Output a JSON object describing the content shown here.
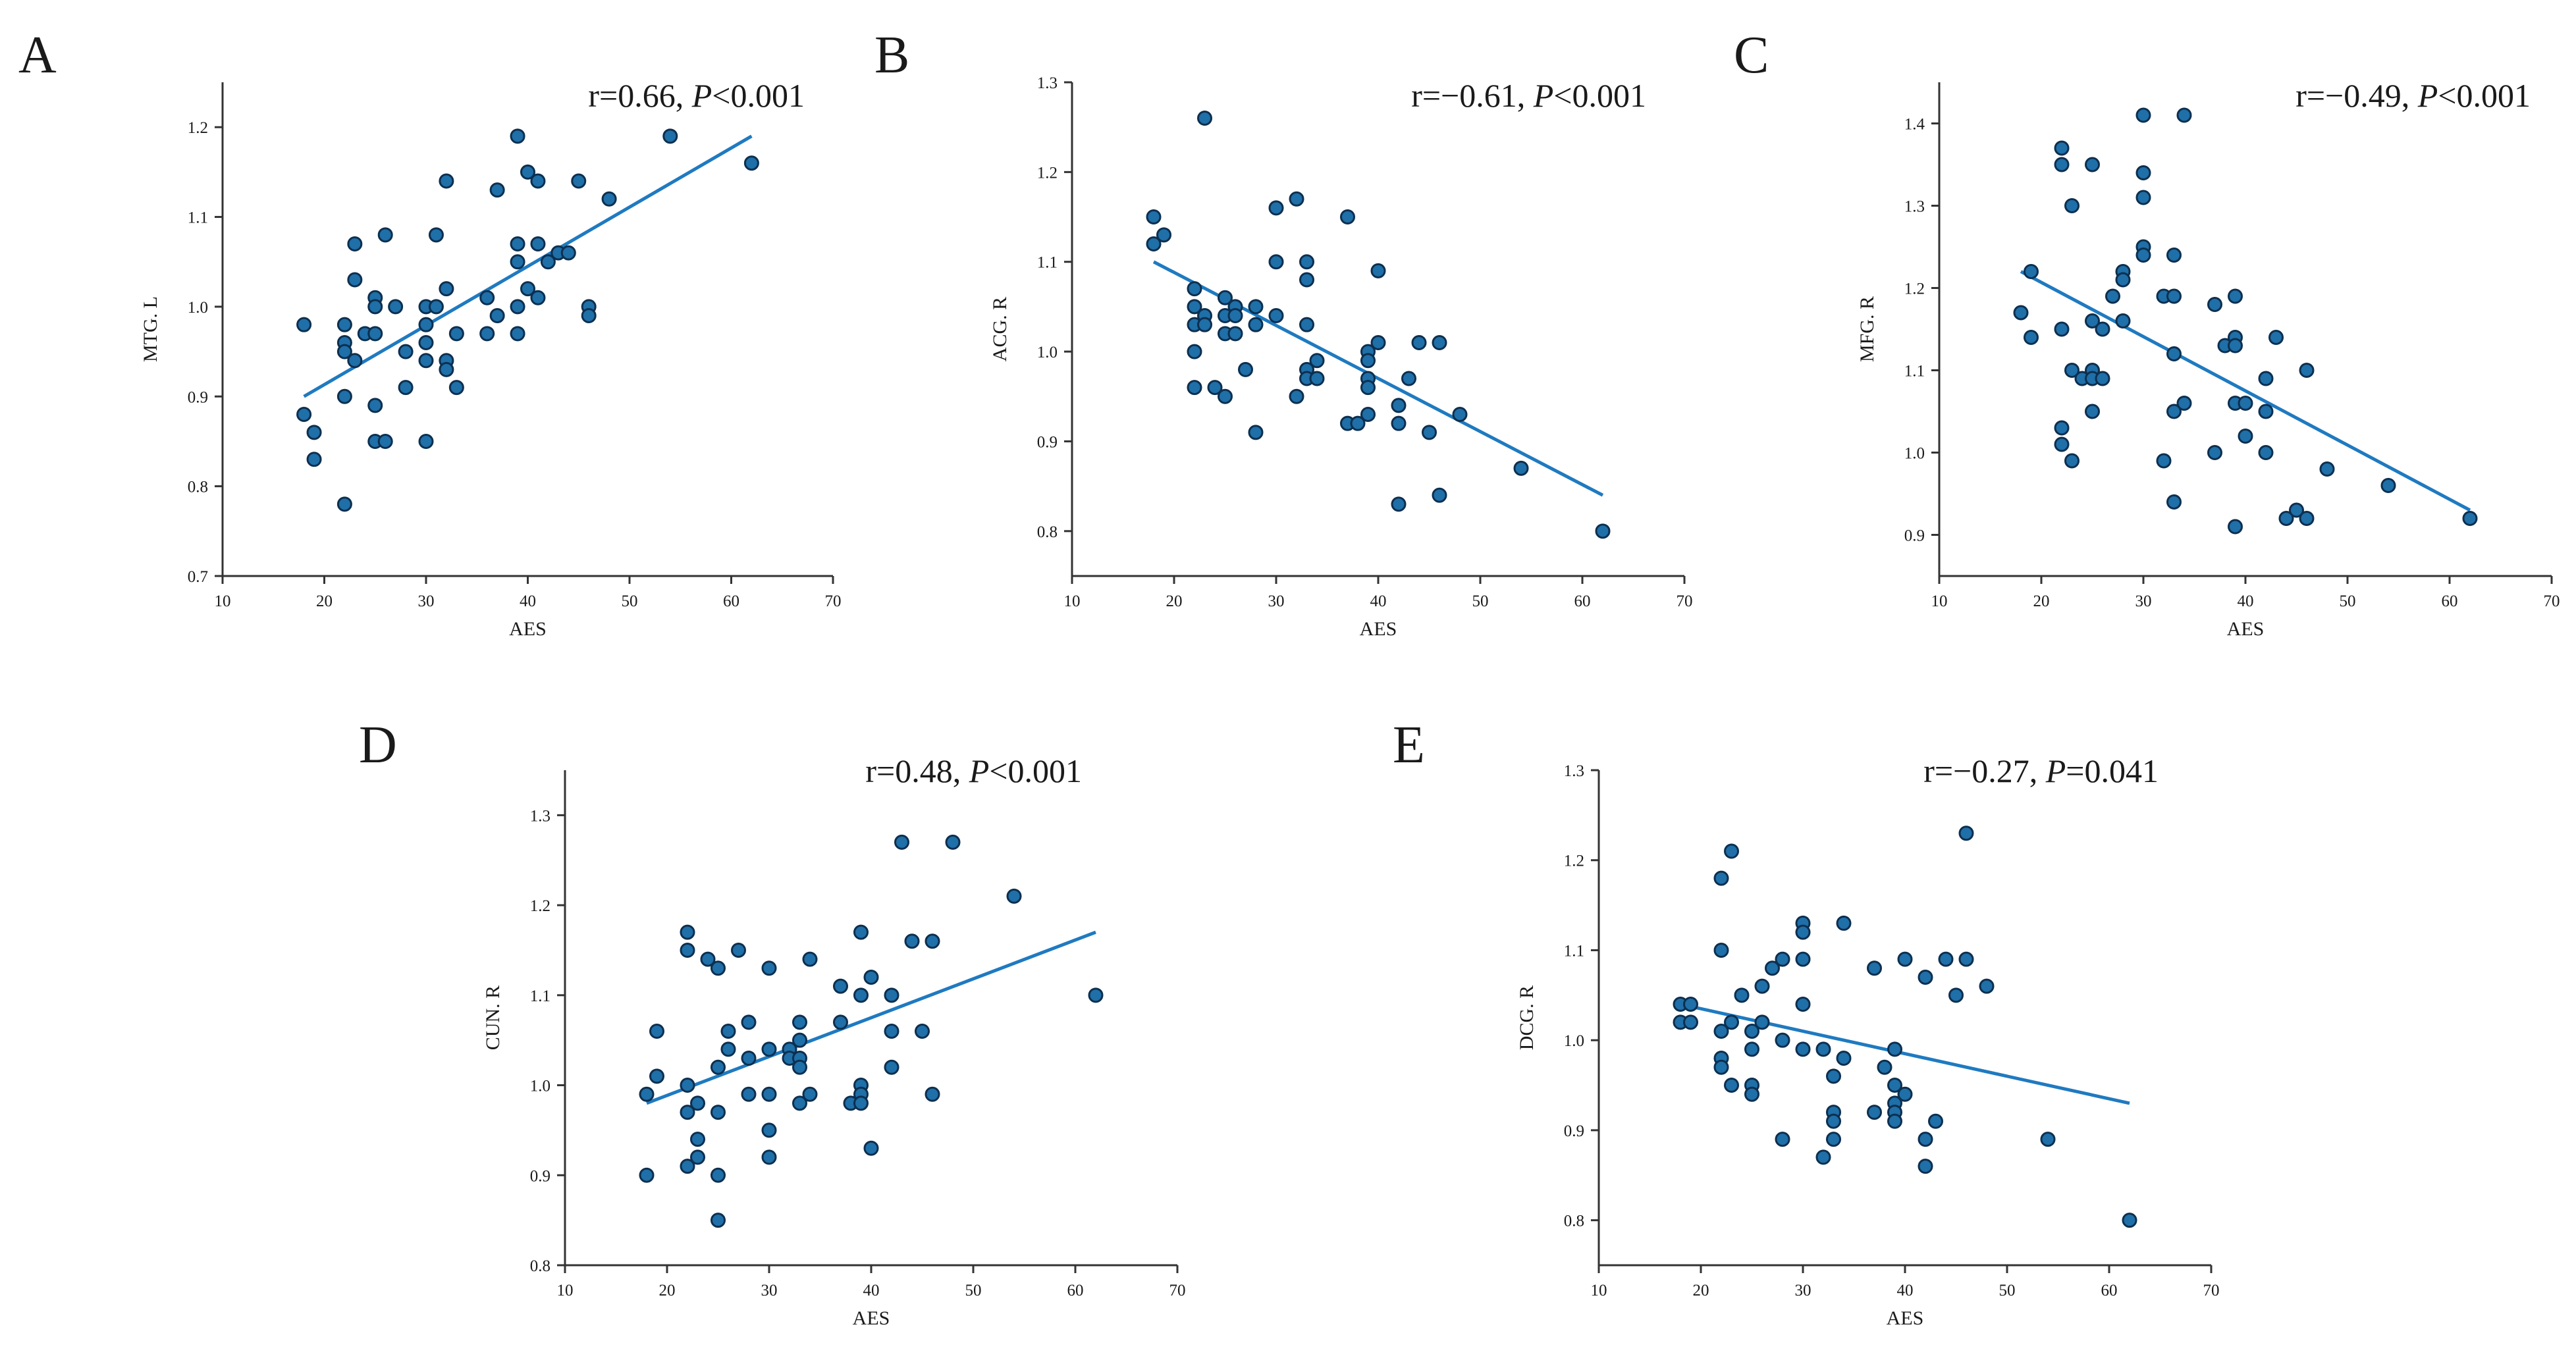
{
  "chart_data": [
    {
      "id": "A",
      "type": "scatter",
      "panel_label": "A",
      "stat_prefix": "r=0.66, ",
      "stat_p": "P",
      "stat_suffix": "<0.001",
      "xlabel": "AES",
      "ylabel": "MTG. L",
      "xlim": [
        10,
        70
      ],
      "ylim": [
        0.7,
        1.25
      ],
      "xticks": [
        "10",
        "20",
        "30",
        "40",
        "50",
        "60",
        "70"
      ],
      "yticks": [
        "0.7",
        "0.8",
        "0.9",
        "1.0",
        "1.1",
        "1.2"
      ],
      "fit": {
        "x": [
          18,
          62
        ],
        "y": [
          0.9,
          1.19
        ]
      },
      "points": [
        [
          18,
          0.98
        ],
        [
          18,
          0.88
        ],
        [
          19,
          0.86
        ],
        [
          19,
          0.83
        ],
        [
          22,
          0.98
        ],
        [
          22,
          0.96
        ],
        [
          22,
          0.95
        ],
        [
          22,
          0.9
        ],
        [
          22,
          0.78
        ],
        [
          23,
          1.07
        ],
        [
          23,
          1.03
        ],
        [
          23,
          0.94
        ],
        [
          24,
          0.97
        ],
        [
          25,
          1.01
        ],
        [
          25,
          1.0
        ],
        [
          25,
          0.97
        ],
        [
          25,
          0.89
        ],
        [
          25,
          0.85
        ],
        [
          26,
          1.08
        ],
        [
          26,
          0.85
        ],
        [
          27,
          1.0
        ],
        [
          28,
          0.95
        ],
        [
          28,
          0.91
        ],
        [
          30,
          1.0
        ],
        [
          30,
          0.98
        ],
        [
          30,
          0.96
        ],
        [
          30,
          0.94
        ],
        [
          30,
          0.85
        ],
        [
          31,
          1.08
        ],
        [
          31,
          1.0
        ],
        [
          32,
          1.14
        ],
        [
          32,
          1.02
        ],
        [
          32,
          0.94
        ],
        [
          32,
          0.93
        ],
        [
          33,
          0.97
        ],
        [
          33,
          0.91
        ],
        [
          36,
          1.01
        ],
        [
          36,
          0.97
        ],
        [
          37,
          1.13
        ],
        [
          37,
          0.99
        ],
        [
          39,
          1.19
        ],
        [
          39,
          1.07
        ],
        [
          39,
          1.05
        ],
        [
          39,
          1.0
        ],
        [
          39,
          0.97
        ],
        [
          40,
          1.15
        ],
        [
          40,
          1.02
        ],
        [
          41,
          1.14
        ],
        [
          41,
          1.07
        ],
        [
          41,
          1.01
        ],
        [
          42,
          1.05
        ],
        [
          43,
          1.06
        ],
        [
          44,
          1.06
        ],
        [
          45,
          1.14
        ],
        [
          46,
          1.0
        ],
        [
          46,
          0.99
        ],
        [
          48,
          1.12
        ],
        [
          54,
          1.19
        ],
        [
          62,
          1.16
        ]
      ]
    },
    {
      "id": "B",
      "type": "scatter",
      "panel_label": "B",
      "stat_prefix": "r=−0.61, ",
      "stat_p": "P",
      "stat_suffix": "<0.001",
      "xlabel": "AES",
      "ylabel": "ACG. R",
      "xlim": [
        10,
        70
      ],
      "ylim": [
        0.75,
        1.3
      ],
      "xticks": [
        "10",
        "20",
        "30",
        "40",
        "50",
        "60",
        "70"
      ],
      "yticks": [
        "0.8",
        "0.9",
        "1.0",
        "1.1",
        "1.2",
        "1.3"
      ],
      "fit": {
        "x": [
          18,
          62
        ],
        "y": [
          1.1,
          0.84
        ]
      },
      "points": [
        [
          18,
          1.15
        ],
        [
          18,
          1.12
        ],
        [
          19,
          1.13
        ],
        [
          22,
          1.07
        ],
        [
          22,
          1.05
        ],
        [
          22,
          1.03
        ],
        [
          22,
          1.0
        ],
        [
          22,
          0.96
        ],
        [
          23,
          1.26
        ],
        [
          23,
          1.04
        ],
        [
          23,
          1.03
        ],
        [
          24,
          0.96
        ],
        [
          25,
          1.06
        ],
        [
          25,
          1.04
        ],
        [
          25,
          1.02
        ],
        [
          25,
          0.95
        ],
        [
          26,
          1.05
        ],
        [
          26,
          1.04
        ],
        [
          26,
          1.02
        ],
        [
          27,
          0.98
        ],
        [
          28,
          1.05
        ],
        [
          28,
          1.03
        ],
        [
          28,
          0.91
        ],
        [
          30,
          1.16
        ],
        [
          30,
          1.1
        ],
        [
          30,
          1.04
        ],
        [
          32,
          1.17
        ],
        [
          32,
          0.95
        ],
        [
          33,
          1.1
        ],
        [
          33,
          1.08
        ],
        [
          33,
          1.03
        ],
        [
          33,
          0.98
        ],
        [
          33,
          0.97
        ],
        [
          34,
          0.99
        ],
        [
          34,
          0.97
        ],
        [
          37,
          1.15
        ],
        [
          37,
          0.92
        ],
        [
          38,
          0.92
        ],
        [
          39,
          1.0
        ],
        [
          39,
          0.99
        ],
        [
          39,
          0.97
        ],
        [
          39,
          0.96
        ],
        [
          39,
          0.93
        ],
        [
          40,
          1.09
        ],
        [
          40,
          1.01
        ],
        [
          42,
          0.94
        ],
        [
          42,
          0.92
        ],
        [
          42,
          0.83
        ],
        [
          43,
          0.97
        ],
        [
          44,
          1.01
        ],
        [
          45,
          0.91
        ],
        [
          46,
          1.01
        ],
        [
          46,
          0.84
        ],
        [
          48,
          0.93
        ],
        [
          54,
          0.87
        ],
        [
          62,
          0.8
        ]
      ]
    },
    {
      "id": "C",
      "type": "scatter",
      "panel_label": "C",
      "stat_prefix": "r=−0.49, ",
      "stat_p": "P",
      "stat_suffix": "<0.001",
      "xlabel": "AES",
      "ylabel": "MFG. R",
      "xlim": [
        10,
        70
      ],
      "ylim": [
        0.85,
        1.45
      ],
      "xticks": [
        "10",
        "20",
        "30",
        "40",
        "50",
        "60",
        "70"
      ],
      "yticks": [
        "0.9",
        "1.0",
        "1.1",
        "1.2",
        "1.3",
        "1.4"
      ],
      "fit": {
        "x": [
          18,
          62
        ],
        "y": [
          1.22,
          0.93
        ]
      },
      "points": [
        [
          18,
          1.17
        ],
        [
          19,
          1.22
        ],
        [
          19,
          1.14
        ],
        [
          22,
          1.37
        ],
        [
          22,
          1.35
        ],
        [
          22,
          1.15
        ],
        [
          22,
          1.03
        ],
        [
          22,
          1.01
        ],
        [
          23,
          1.3
        ],
        [
          23,
          1.1
        ],
        [
          23,
          0.99
        ],
        [
          24,
          1.09
        ],
        [
          25,
          1.35
        ],
        [
          25,
          1.16
        ],
        [
          25,
          1.1
        ],
        [
          25,
          1.09
        ],
        [
          25,
          1.05
        ],
        [
          26,
          1.15
        ],
        [
          26,
          1.09
        ],
        [
          27,
          1.19
        ],
        [
          28,
          1.22
        ],
        [
          28,
          1.21
        ],
        [
          28,
          1.16
        ],
        [
          30,
          1.41
        ],
        [
          30,
          1.34
        ],
        [
          30,
          1.31
        ],
        [
          30,
          1.25
        ],
        [
          30,
          1.24
        ],
        [
          32,
          1.19
        ],
        [
          32,
          0.99
        ],
        [
          33,
          1.24
        ],
        [
          33,
          1.19
        ],
        [
          33,
          1.12
        ],
        [
          33,
          1.05
        ],
        [
          33,
          0.94
        ],
        [
          34,
          1.41
        ],
        [
          34,
          1.06
        ],
        [
          37,
          1.18
        ],
        [
          37,
          1.0
        ],
        [
          38,
          1.13
        ],
        [
          39,
          1.19
        ],
        [
          39,
          1.14
        ],
        [
          39,
          1.13
        ],
        [
          39,
          1.06
        ],
        [
          39,
          0.91
        ],
        [
          40,
          1.06
        ],
        [
          40,
          1.02
        ],
        [
          42,
          1.09
        ],
        [
          42,
          1.05
        ],
        [
          42,
          1.0
        ],
        [
          43,
          1.14
        ],
        [
          44,
          0.92
        ],
        [
          45,
          0.93
        ],
        [
          46,
          1.1
        ],
        [
          46,
          0.92
        ],
        [
          48,
          0.98
        ],
        [
          54,
          0.96
        ],
        [
          62,
          0.92
        ]
      ]
    },
    {
      "id": "D",
      "type": "scatter",
      "panel_label": "D",
      "stat_prefix": "r=0.48, ",
      "stat_p": "P",
      "stat_suffix": "<0.001",
      "xlabel": "AES",
      "ylabel": "CUN. R",
      "xlim": [
        10,
        70
      ],
      "ylim": [
        0.8,
        1.35
      ],
      "xticks": [
        "10",
        "20",
        "30",
        "40",
        "50",
        "60",
        "70"
      ],
      "yticks": [
        "0.8",
        "0.9",
        "1.0",
        "1.1",
        "1.2",
        "1.3"
      ],
      "fit": {
        "x": [
          18,
          62
        ],
        "y": [
          0.98,
          1.17
        ]
      },
      "points": [
        [
          18,
          0.99
        ],
        [
          18,
          0.9
        ],
        [
          19,
          1.06
        ],
        [
          19,
          1.01
        ],
        [
          22,
          1.17
        ],
        [
          22,
          1.15
        ],
        [
          22,
          1.0
        ],
        [
          22,
          0.97
        ],
        [
          22,
          0.91
        ],
        [
          23,
          0.98
        ],
        [
          23,
          0.94
        ],
        [
          23,
          0.92
        ],
        [
          24,
          1.14
        ],
        [
          25,
          1.13
        ],
        [
          25,
          1.02
        ],
        [
          25,
          0.97
        ],
        [
          25,
          0.9
        ],
        [
          25,
          0.85
        ],
        [
          26,
          1.06
        ],
        [
          26,
          1.04
        ],
        [
          27,
          1.15
        ],
        [
          28,
          1.07
        ],
        [
          28,
          1.03
        ],
        [
          28,
          0.99
        ],
        [
          30,
          1.13
        ],
        [
          30,
          1.04
        ],
        [
          30,
          0.99
        ],
        [
          30,
          0.95
        ],
        [
          30,
          0.92
        ],
        [
          32,
          1.04
        ],
        [
          32,
          1.03
        ],
        [
          33,
          1.07
        ],
        [
          33,
          1.05
        ],
        [
          33,
          1.03
        ],
        [
          33,
          1.02
        ],
        [
          33,
          0.98
        ],
        [
          34,
          1.14
        ],
        [
          34,
          0.99
        ],
        [
          37,
          1.11
        ],
        [
          37,
          1.07
        ],
        [
          38,
          0.98
        ],
        [
          39,
          1.17
        ],
        [
          39,
          1.1
        ],
        [
          39,
          1.0
        ],
        [
          39,
          0.99
        ],
        [
          39,
          0.98
        ],
        [
          40,
          1.12
        ],
        [
          40,
          0.93
        ],
        [
          42,
          1.1
        ],
        [
          42,
          1.06
        ],
        [
          42,
          1.02
        ],
        [
          43,
          1.27
        ],
        [
          44,
          1.16
        ],
        [
          45,
          1.06
        ],
        [
          46,
          1.16
        ],
        [
          46,
          0.99
        ],
        [
          48,
          1.27
        ],
        [
          54,
          1.21
        ],
        [
          62,
          1.1
        ]
      ]
    },
    {
      "id": "E",
      "type": "scatter",
      "panel_label": "E",
      "stat_prefix": "r=−0.27, ",
      "stat_p": "P",
      "stat_suffix": "=0.041",
      "xlabel": "AES",
      "ylabel": "DCG. R",
      "xlim": [
        10,
        70
      ],
      "ylim": [
        0.75,
        1.3
      ],
      "xticks": [
        "10",
        "20",
        "30",
        "40",
        "50",
        "60",
        "70"
      ],
      "yticks": [
        "0.8",
        "0.9",
        "1.0",
        "1.1",
        "1.2",
        "1.3"
      ],
      "fit": {
        "x": [
          18,
          62
        ],
        "y": [
          1.04,
          0.93
        ]
      },
      "points": [
        [
          18,
          1.04
        ],
        [
          18,
          1.02
        ],
        [
          19,
          1.04
        ],
        [
          19,
          1.02
        ],
        [
          22,
          1.18
        ],
        [
          22,
          1.1
        ],
        [
          22,
          1.01
        ],
        [
          22,
          0.98
        ],
        [
          22,
          0.97
        ],
        [
          23,
          1.21
        ],
        [
          23,
          1.02
        ],
        [
          23,
          0.95
        ],
        [
          24,
          1.05
        ],
        [
          25,
          1.01
        ],
        [
          25,
          0.99
        ],
        [
          25,
          0.95
        ],
        [
          25,
          0.94
        ],
        [
          26,
          1.06
        ],
        [
          26,
          1.02
        ],
        [
          27,
          1.08
        ],
        [
          28,
          1.09
        ],
        [
          28,
          1.0
        ],
        [
          28,
          0.89
        ],
        [
          30,
          1.13
        ],
        [
          30,
          1.12
        ],
        [
          30,
          1.09
        ],
        [
          30,
          1.04
        ],
        [
          30,
          0.99
        ],
        [
          32,
          0.99
        ],
        [
          32,
          0.87
        ],
        [
          33,
          0.96
        ],
        [
          33,
          0.92
        ],
        [
          33,
          0.91
        ],
        [
          33,
          0.89
        ],
        [
          34,
          1.13
        ],
        [
          34,
          0.98
        ],
        [
          37,
          1.08
        ],
        [
          37,
          0.92
        ],
        [
          38,
          0.97
        ],
        [
          39,
          0.99
        ],
        [
          39,
          0.95
        ],
        [
          39,
          0.93
        ],
        [
          39,
          0.92
        ],
        [
          39,
          0.91
        ],
        [
          40,
          1.09
        ],
        [
          40,
          0.94
        ],
        [
          42,
          1.07
        ],
        [
          42,
          0.89
        ],
        [
          42,
          0.86
        ],
        [
          43,
          0.91
        ],
        [
          44,
          1.09
        ],
        [
          45,
          1.05
        ],
        [
          46,
          1.23
        ],
        [
          46,
          1.09
        ],
        [
          48,
          1.06
        ],
        [
          54,
          0.89
        ],
        [
          62,
          0.8
        ]
      ]
    }
  ]
}
